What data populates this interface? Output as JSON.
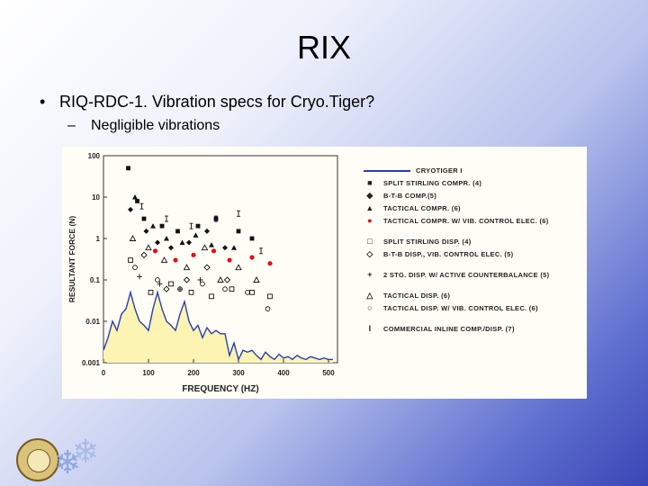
{
  "slide": {
    "title": "RIX",
    "bullet1": "RIQ-RDC-1. Vibration specs for Cryo.Tiger?",
    "bullet2": "Negligible vibrations"
  },
  "colors": {
    "cryotiger_line": "#2a3fb0",
    "fill": "#fbf4b3",
    "highlight_marker": "#e01010"
  },
  "chart_data": {
    "type": "scatter",
    "xlabel": "FREQUENCY (HZ)",
    "ylabel": "RESULTANT FORCE (N)",
    "xlim": [
      0,
      520
    ],
    "ylim": [
      0.001,
      100
    ],
    "yscale": "log",
    "x_ticks": [
      "0",
      "100",
      "200",
      "300",
      "400",
      "500"
    ],
    "y_ticks": [
      "100",
      "10",
      "1",
      "0.1",
      "0.01",
      "0.001"
    ],
    "legend": [
      "CRYOTIGER I",
      "SPLIT STIRLING COMPR. (4)",
      "B-T-B COMP.(5)",
      "TACTICAL COMPR. (6)",
      "TACTICAL COMPR. W/ VIB. CONTROL ELEC. (6)",
      "SPLIT STIRLING DISP. (4)",
      "B-T-B DISP., VIB. CONTROL ELEC. (5)",
      "2 STG. DISP. W/ ACTIVE COUNTERBALANCE (5)",
      "TACTICAL DISP. (6)",
      "TACTICAL DISP. W/ VIB. CONTROL ELEC. (6)",
      "COMMERCIAL INLINE COMP./DISP. (7)"
    ],
    "series": [
      {
        "name": "CRYOTIGER I",
        "x": [
          0,
          10,
          20,
          30,
          40,
          50,
          60,
          70,
          80,
          90,
          100,
          110,
          120,
          130,
          140,
          150,
          160,
          170,
          180,
          190,
          200,
          210,
          220,
          230,
          240,
          250,
          260,
          270,
          280,
          290,
          300,
          310,
          320,
          330,
          340,
          350,
          360,
          370,
          380,
          390,
          400,
          410,
          420,
          430,
          440,
          450,
          460,
          470,
          480,
          490,
          500,
          510
        ],
        "values": [
          0.002,
          0.004,
          0.01,
          0.006,
          0.015,
          0.02,
          0.05,
          0.02,
          0.01,
          0.008,
          0.006,
          0.02,
          0.05,
          0.02,
          0.01,
          0.008,
          0.006,
          0.015,
          0.03,
          0.01,
          0.006,
          0.008,
          0.004,
          0.007,
          0.005,
          0.006,
          0.005,
          0.005,
          0.0015,
          0.003,
          0.0012,
          0.002,
          0.0018,
          0.002,
          0.0015,
          0.0012,
          0.0018,
          0.0014,
          0.0012,
          0.0016,
          0.0013,
          0.0014,
          0.0012,
          0.0015,
          0.0013,
          0.0012,
          0.0014,
          0.0013,
          0.0012,
          0.0013,
          0.0012,
          0.0012
        ]
      },
      {
        "name": "SPLIT STIRLING COMPR. (4)",
        "marker": "square-filled",
        "x": [
          55,
          75,
          90,
          130,
          165,
          210,
          250,
          300,
          330
        ],
        "values": [
          50,
          8,
          3,
          2,
          1.5,
          2,
          3,
          1.5,
          1
        ]
      },
      {
        "name": "B-T-B COMP.(5)",
        "marker": "diamond-filled",
        "x": [
          60,
          95,
          120,
          150,
          190,
          230,
          270
        ],
        "values": [
          5,
          1.5,
          0.8,
          0.6,
          0.8,
          1.5,
          0.6
        ]
      },
      {
        "name": "TACTICAL COMPR. (6)",
        "marker": "triangle-filled",
        "x": [
          70,
          110,
          140,
          175,
          205,
          240,
          290
        ],
        "values": [
          10,
          2,
          1,
          0.8,
          1.2,
          0.7,
          0.6
        ]
      },
      {
        "name": "TACTICAL COMPR. W/ VIB. CONTROL ELEC. (6)",
        "marker": "circle-red",
        "x": [
          115,
          160,
          200,
          245,
          280,
          330,
          370
        ],
        "values": [
          0.5,
          0.3,
          0.4,
          0.5,
          0.3,
          0.35,
          0.25
        ]
      },
      {
        "name": "SPLIT STIRLING DISP. (4)",
        "marker": "square-open",
        "x": [
          60,
          105,
          150,
          195,
          240,
          285,
          330,
          370
        ],
        "values": [
          0.3,
          0.05,
          0.08,
          0.05,
          0.04,
          0.06,
          0.05,
          0.04
        ]
      },
      {
        "name": "B-T-B DISP., VIB. CONTROL ELEC. (5)",
        "marker": "diamond-open",
        "x": [
          90,
          140,
          185,
          230,
          275
        ],
        "values": [
          0.4,
          0.06,
          0.1,
          0.2,
          0.1
        ]
      },
      {
        "name": "2 STG. DISP. W/ ACTIVE COUNTERBALANCE (5)",
        "marker": "plus",
        "x": [
          80,
          125,
          170,
          215
        ],
        "values": [
          0.12,
          0.08,
          0.06,
          0.1
        ]
      },
      {
        "name": "TACTICAL DISP. (6)",
        "marker": "triangle-open",
        "x": [
          65,
          100,
          135,
          185,
          225,
          260,
          300,
          340
        ],
        "values": [
          1,
          0.6,
          0.3,
          0.2,
          0.6,
          0.1,
          0.2,
          0.1
        ]
      },
      {
        "name": "TACTICAL DISP. W/ VIB. CONTROL ELEC. (6)",
        "marker": "circle-open",
        "x": [
          70,
          120,
          170,
          220,
          270,
          320,
          365
        ],
        "values": [
          0.2,
          0.1,
          0.06,
          0.08,
          0.06,
          0.05,
          0.02
        ]
      },
      {
        "name": "COMMERCIAL INLINE COMP./DISP. (7)",
        "marker": "ibeam",
        "x": [
          85,
          140,
          195,
          250,
          300,
          350
        ],
        "values": [
          6,
          3,
          2,
          3,
          4,
          0.5
        ]
      }
    ]
  }
}
